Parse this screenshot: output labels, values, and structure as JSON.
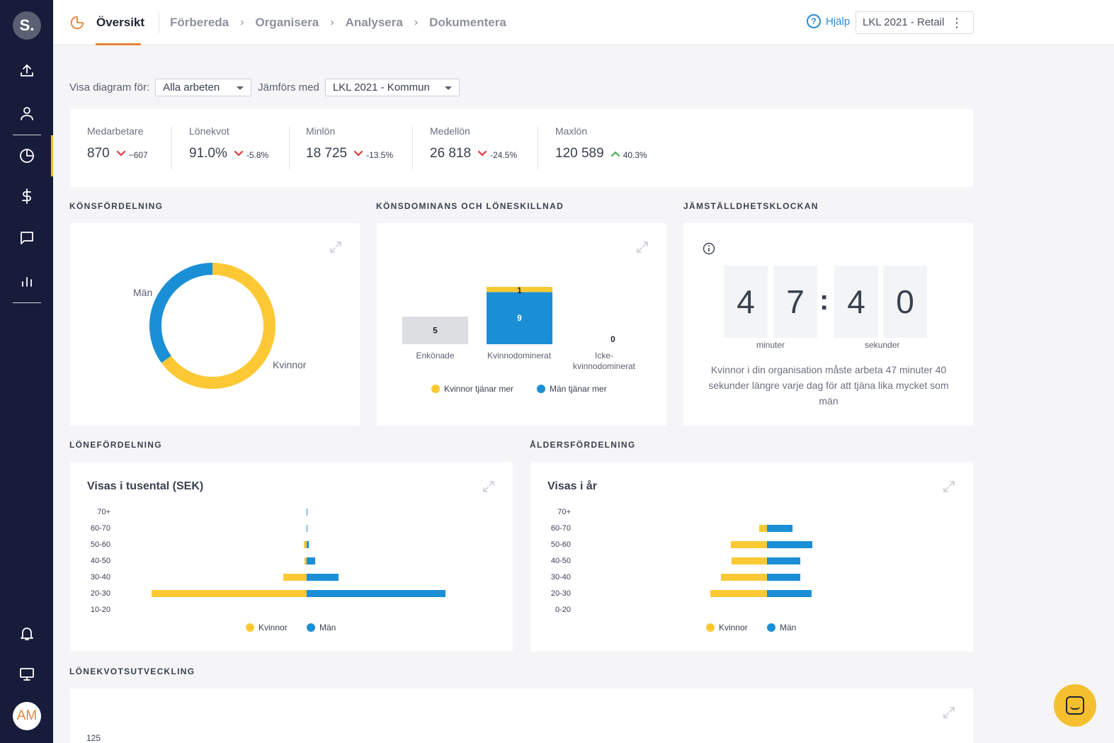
{
  "sidebar": {
    "logo": "S.",
    "items": [
      {
        "icon": "upload-icon"
      },
      {
        "icon": "user-icon"
      },
      {
        "icon": "pie-chart-icon",
        "active": true
      },
      {
        "icon": "dollar-icon"
      },
      {
        "icon": "chat-icon"
      },
      {
        "icon": "bar-chart-icon"
      },
      {
        "icon": "bell-icon"
      },
      {
        "icon": "monitor-icon"
      }
    ],
    "avatar": "AM"
  },
  "topnav": {
    "active_tab": "Översikt",
    "breadcrumbs": [
      "Förbereda",
      "Organisera",
      "Analysera",
      "Dokumentera"
    ],
    "help": "Hjälp",
    "company_select": "LKL 2021 - Retail"
  },
  "filters": {
    "show_label": "Visa diagram för:",
    "show_value": "Alla arbeten",
    "compare_label": "Jämförs med",
    "compare_value": "LKL 2021 - Kommun"
  },
  "kpis": [
    {
      "label": "Medarbetare",
      "value": "870",
      "delta": "−607",
      "trend": "down"
    },
    {
      "label": "Lönekvot",
      "value": "91.0%",
      "delta": "-5.8%",
      "trend": "down"
    },
    {
      "label": "Minlön",
      "value": "18 725",
      "delta": "-13.5%",
      "trend": "down"
    },
    {
      "label": "Medellön",
      "value": "26 818",
      "delta": "-24.5%",
      "trend": "down"
    },
    {
      "label": "Maxlön",
      "value": "120 589",
      "delta": "40.3%",
      "trend": "up"
    }
  ],
  "colors": {
    "women": "#fcc934",
    "men": "#1b8fd6",
    "neutral": "#dcdee2",
    "down": "#e0383e",
    "up": "#4caf50",
    "accent": "#e8833a"
  },
  "sections": {
    "gender": "KÖNSFÖRDELNING",
    "dominance": "KÖNSDOMINANS OCH LÖNESKILLNAD",
    "clock": "JÄMSTÄLLDHETSKLOCKAN",
    "salary": "LÖNEFÖRDELNING",
    "age": "ÅLDERSFÖRDELNING",
    "ratio": "LÖNEKVOTSUTVECKLING"
  },
  "chart_data": [
    {
      "type": "pie",
      "labels": [
        "Kvinnor",
        "Män"
      ],
      "values": [
        65,
        35
      ]
    },
    {
      "type": "bar",
      "categories": [
        "Enkönade",
        "Kvinnodominerat",
        "Icke-kvinnodominerat"
      ],
      "series": [
        {
          "name": "Kvinnor tjänar mer",
          "values": [
            0,
            1,
            0
          ]
        },
        {
          "name": "Män tjänar mer",
          "values": [
            0,
            9,
            0
          ]
        }
      ],
      "neutral_values": [
        5,
        0,
        0
      ],
      "labels": [
        "5",
        "1",
        "9",
        "0"
      ],
      "legend": [
        "Kvinnor tjänar mer",
        "Män tjänar mer"
      ]
    },
    {
      "type": "bar",
      "title": "Visas i tusental (SEK)",
      "categories": [
        "70+",
        "60-70",
        "50-60",
        "40-50",
        "30-40",
        "20-30",
        "10-20"
      ],
      "series": [
        {
          "name": "Kvinnor",
          "values": [
            0,
            0,
            3,
            2,
            24,
            160,
            0
          ]
        },
        {
          "name": "Män",
          "values": [
            1,
            1,
            2,
            9,
            33,
            143,
            0
          ]
        }
      ],
      "legend": [
        "Kvinnor",
        "Män"
      ]
    },
    {
      "type": "bar",
      "title": "Visas i år",
      "categories": [
        "70+",
        "60-70",
        "50-60",
        "40-50",
        "30-40",
        "20-30",
        "0-20"
      ],
      "series": [
        {
          "name": "Kvinnor",
          "values": [
            0,
            11,
            51,
            50,
            65,
            80,
            0
          ]
        },
        {
          "name": "Män",
          "values": [
            0,
            36,
            64,
            47,
            47,
            63,
            0
          ]
        }
      ],
      "legend": [
        "Kvinnor",
        "Män"
      ]
    },
    {
      "type": "line",
      "ytick_top": "125"
    }
  ],
  "clock": {
    "digits": [
      "4",
      "7",
      "4",
      "0"
    ],
    "minutes_label": "minuter",
    "seconds_label": "sekunder",
    "text": "Kvinnor i din organisation måste arbeta 47 minuter 40 sekunder längre varje dag för att tjäna lika mycket som män"
  }
}
